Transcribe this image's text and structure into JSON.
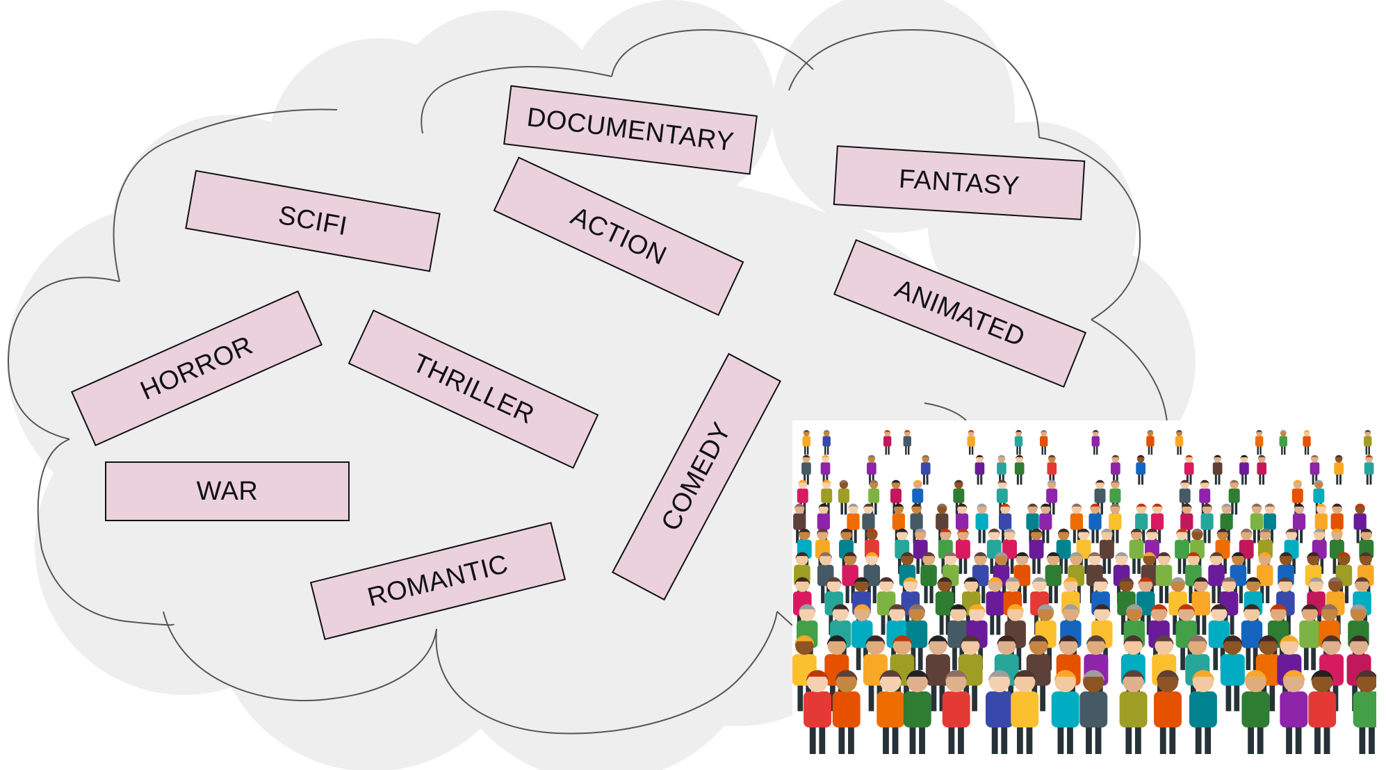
{
  "cloud": {
    "fill": "#eeeeee",
    "stroke": "#555555"
  },
  "genres": {
    "documentary": "DOCUMENTARY",
    "fantasy": "FANTASY",
    "scifi": "SCIFI",
    "action": "ACTION",
    "animated": "ANIMATED",
    "horror": "HORROR",
    "thriller": "THRILLER",
    "comedy": "COMEDY",
    "war": "WAR",
    "romantic": "ROMANTIC"
  },
  "tag_style": {
    "fill": "#ead1dc",
    "border": "#111111"
  },
  "crowd": {
    "icon": "crowd-of-people-illustration",
    "background": "#ffffff"
  }
}
